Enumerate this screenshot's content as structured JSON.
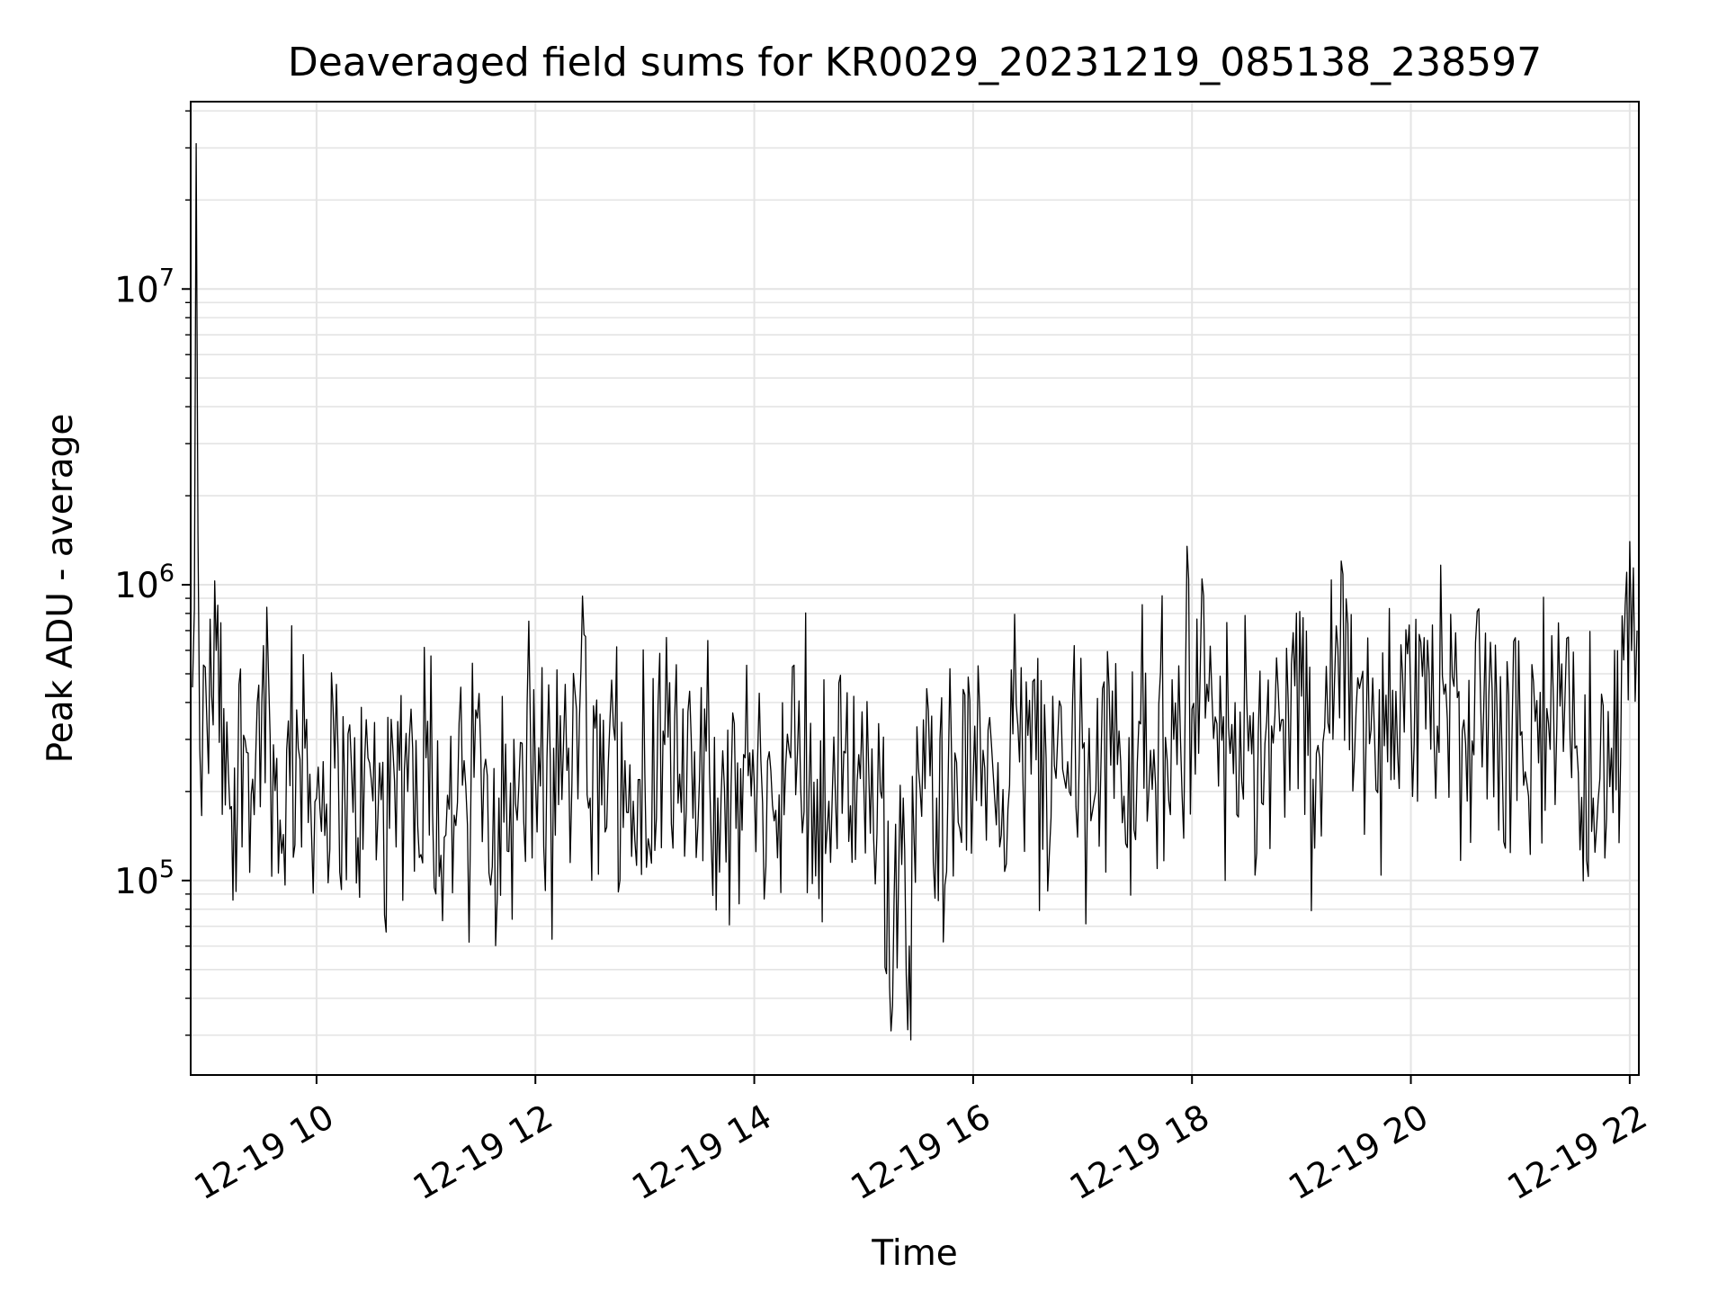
{
  "chart_data": {
    "type": "line",
    "title": "Deaveraged field sums for KR0029_20231219_085138_238597",
    "xlabel": "Time",
    "ylabel": "Peak ADU - average",
    "y_scale": "log",
    "xlim": [
      "2023-12-19 08:51",
      "2023-12-19 22:05"
    ],
    "ylim": [
      22000,
      43000000
    ],
    "x_ticks": [
      "12-19 10",
      "12-19 12",
      "12-19 14",
      "12-19 16",
      "12-19 18",
      "12-19 20",
      "12-19 22"
    ],
    "x_tick_times": [
      "2023-12-19 10:00",
      "2023-12-19 12:00",
      "2023-12-19 14:00",
      "2023-12-19 16:00",
      "2023-12-19 18:00",
      "2023-12-19 20:00",
      "2023-12-19 22:00"
    ],
    "y_ticks": [
      {
        "value": 100000,
        "base": "10",
        "exp": "5"
      },
      {
        "value": 1000000,
        "base": "10",
        "exp": "6"
      },
      {
        "value": 10000000,
        "base": "10",
        "exp": "7"
      }
    ],
    "grid": true,
    "line_color": "#000000",
    "series": [
      {
        "x": [
          "2023-12-19 08:52",
          "2023-12-19 08:54",
          "2023-12-19 08:56",
          "2023-12-19 09:00",
          "2023-12-19 09:05",
          "2023-12-19 09:10",
          "2023-12-19 09:15",
          "2023-12-19 09:20",
          "2023-12-19 09:25",
          "2023-12-19 09:30",
          "2023-12-19 09:40",
          "2023-12-19 09:50",
          "2023-12-19 10:00",
          "2023-12-19 10:10",
          "2023-12-19 10:20",
          "2023-12-19 10:30",
          "2023-12-19 10:40",
          "2023-12-19 10:50",
          "2023-12-19 11:00",
          "2023-12-19 11:10",
          "2023-12-19 11:20",
          "2023-12-19 11:30",
          "2023-12-19 11:40",
          "2023-12-19 11:50",
          "2023-12-19 12:00",
          "2023-12-19 12:10",
          "2023-12-19 12:20",
          "2023-12-19 12:25",
          "2023-12-19 12:30",
          "2023-12-19 12:40",
          "2023-12-19 12:50",
          "2023-12-19 13:00",
          "2023-12-19 13:10",
          "2023-12-19 13:20",
          "2023-12-19 13:30",
          "2023-12-19 13:40",
          "2023-12-19 13:50",
          "2023-12-19 13:55",
          "2023-12-19 14:00",
          "2023-12-19 14:10",
          "2023-12-19 14:20",
          "2023-12-19 14:30",
          "2023-12-19 14:40",
          "2023-12-19 14:50",
          "2023-12-19 15:00",
          "2023-12-19 15:10",
          "2023-12-19 15:15",
          "2023-12-19 15:20",
          "2023-12-19 15:25",
          "2023-12-19 15:30",
          "2023-12-19 15:40",
          "2023-12-19 15:50",
          "2023-12-19 16:00",
          "2023-12-19 16:10",
          "2023-12-19 16:20",
          "2023-12-19 16:30",
          "2023-12-19 16:40",
          "2023-12-19 16:50",
          "2023-12-19 17:00",
          "2023-12-19 17:10",
          "2023-12-19 17:20",
          "2023-12-19 17:30",
          "2023-12-19 17:40",
          "2023-12-19 17:50",
          "2023-12-19 18:00",
          "2023-12-19 18:10",
          "2023-12-19 18:20",
          "2023-12-19 18:30",
          "2023-12-19 18:40",
          "2023-12-19 18:50",
          "2023-12-19 19:00",
          "2023-12-19 19:10",
          "2023-12-19 19:20",
          "2023-12-19 19:30",
          "2023-12-19 19:40",
          "2023-12-19 19:50",
          "2023-12-19 20:00",
          "2023-12-19 20:10",
          "2023-12-19 20:20",
          "2023-12-19 20:30",
          "2023-12-19 20:40",
          "2023-12-19 20:50",
          "2023-12-19 21:00",
          "2023-12-19 21:10",
          "2023-12-19 21:20",
          "2023-12-19 21:30",
          "2023-12-19 21:40",
          "2023-12-19 21:50",
          "2023-12-19 21:55",
          "2023-12-19 22:00",
          "2023-12-19 22:04"
        ],
        "y": [
          450000,
          31000000,
          280000,
          330000,
          600000,
          180000,
          240000,
          310000,
          220000,
          400000,
          160000,
          280000,
          190000,
          240000,
          170000,
          220000,
          150000,
          200000,
          260000,
          140000,
          210000,
          280000,
          190000,
          160000,
          230000,
          280000,
          210000,
          520000,
          190000,
          250000,
          170000,
          230000,
          320000,
          170000,
          220000,
          190000,
          150000,
          260000,
          210000,
          180000,
          260000,
          200000,
          150000,
          270000,
          220000,
          190000,
          31000,
          210000,
          60000,
          240000,
          190000,
          270000,
          220000,
          290000,
          210000,
          310000,
          260000,
          220000,
          280000,
          230000,
          320000,
          250000,
          210000,
          300000,
          380000,
          620000,
          330000,
          410000,
          290000,
          350000,
          420000,
          260000,
          610000,
          380000,
          320000,
          440000,
          380000,
          500000,
          350000,
          290000,
          390000,
          270000,
          310000,
          250000,
          330000,
          280000,
          190000,
          280000,
          250000,
          1400000,
          700000
        ]
      }
    ]
  }
}
